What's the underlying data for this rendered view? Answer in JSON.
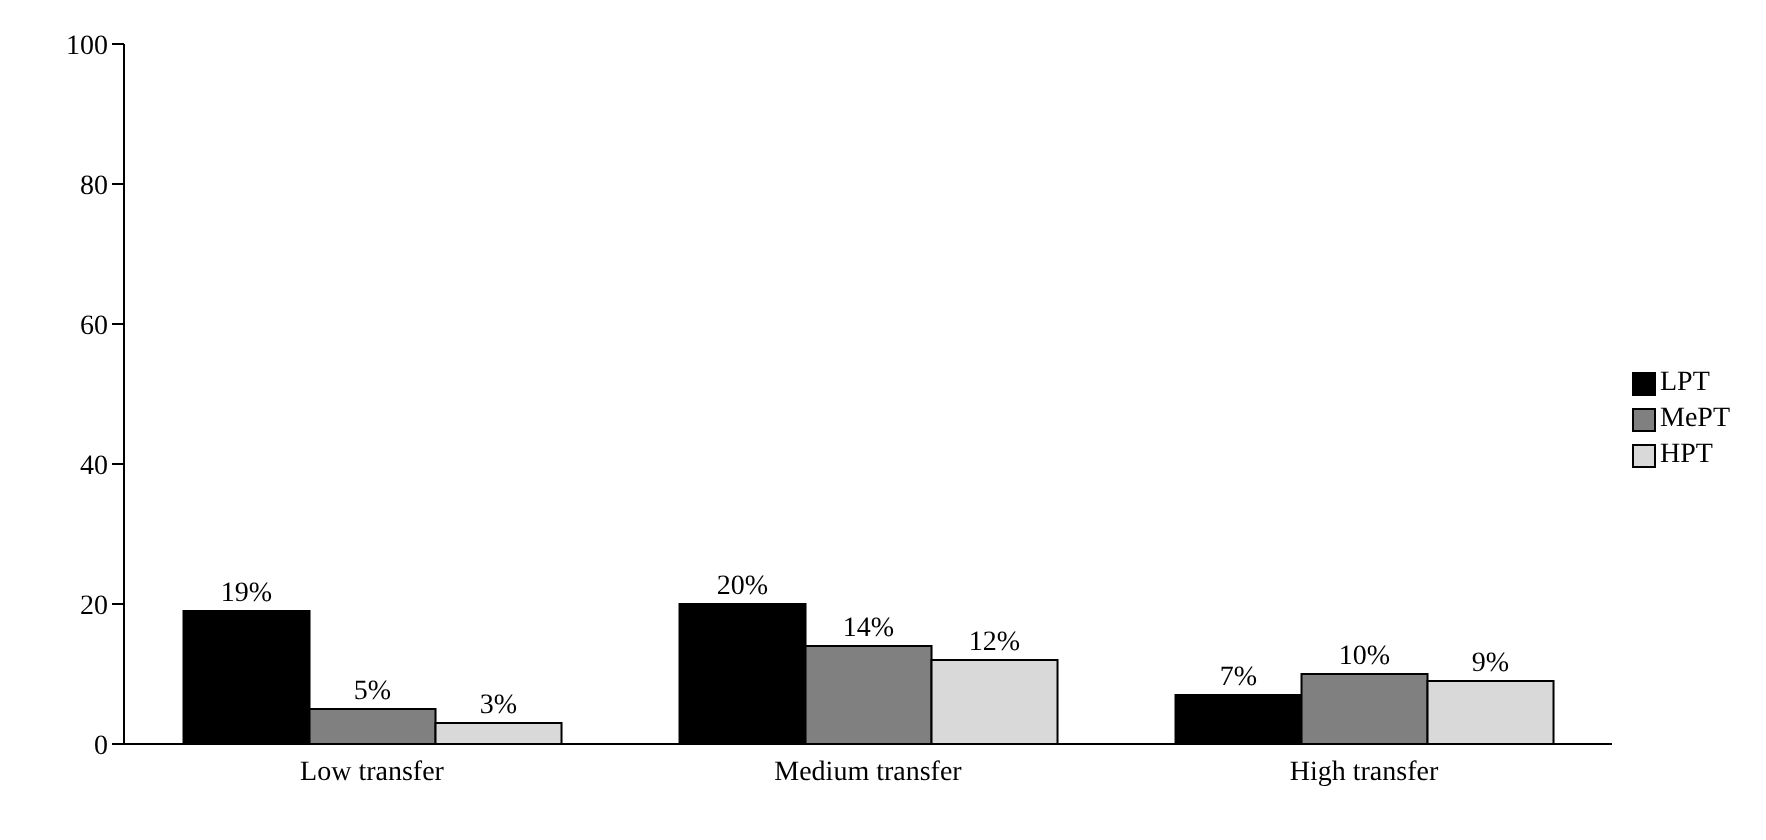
{
  "chart_data": {
    "type": "bar",
    "categories": [
      "Low transfer",
      "Medium transfer",
      "High transfer"
    ],
    "series": [
      {
        "name": "LPT",
        "color": "#000000",
        "values": [
          19,
          20,
          7
        ],
        "value_labels": [
          "19%",
          "20%",
          "7%"
        ]
      },
      {
        "name": "MePT",
        "color": "#808080",
        "values": [
          5,
          14,
          10
        ],
        "value_labels": [
          "5%",
          "14%",
          "10%"
        ]
      },
      {
        "name": "HPT",
        "color": "#d9d9d9",
        "values": [
          3,
          12,
          9
        ],
        "value_labels": [
          "3%",
          "12%",
          "9%"
        ]
      }
    ],
    "ylim": [
      0,
      100
    ],
    "yticks": [
      0,
      20,
      40,
      60,
      80,
      100
    ],
    "grid": false,
    "legend": "right"
  }
}
